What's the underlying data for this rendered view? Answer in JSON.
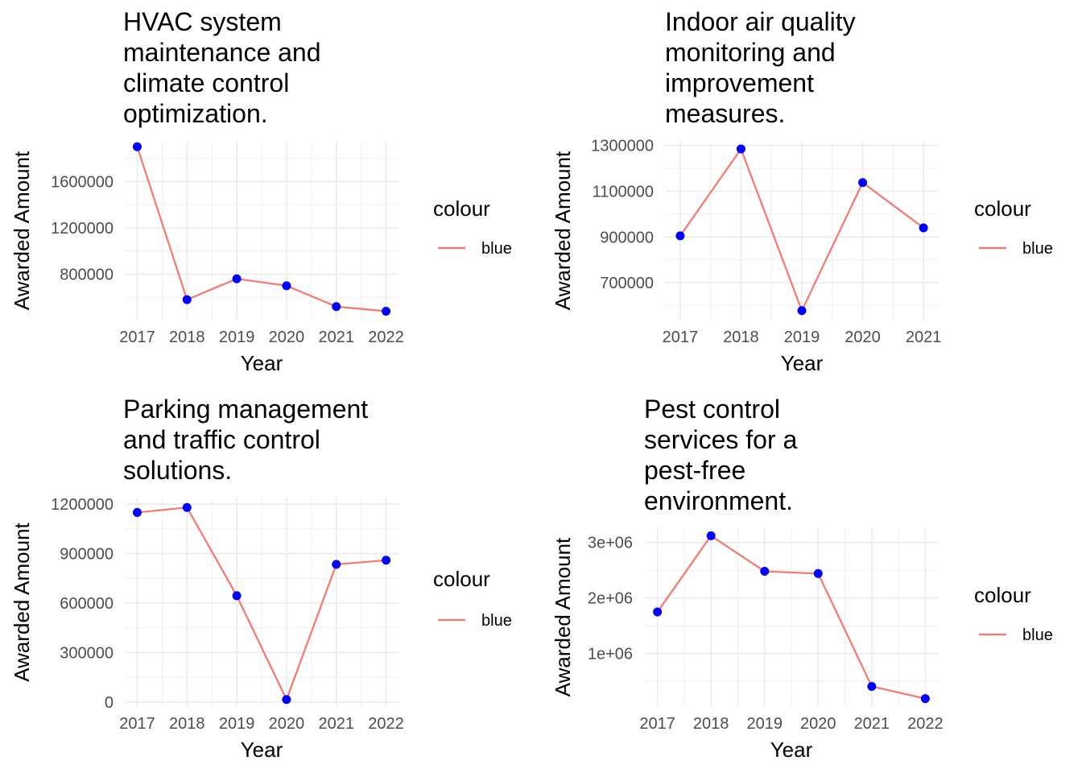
{
  "colors": {
    "line": "#F8766D",
    "point": "#0000FF"
  },
  "chart_data": [
    {
      "type": "line",
      "title": "HVAC system maintenance and climate control optimization.",
      "title_lines": [
        "HVAC system",
        "maintenance and",
        "climate control",
        "optimization."
      ],
      "xlabel": "Year",
      "ylabel": "Awarded Amount",
      "x": [
        2017,
        2018,
        2019,
        2020,
        2021,
        2022
      ],
      "y": [
        1900000,
        580000,
        760000,
        700000,
        520000,
        480000
      ],
      "ylim": [
        400000,
        1950000
      ],
      "yticks": [
        800000,
        1200000,
        1600000
      ],
      "ytick_labels": [
        "800000",
        "1200000",
        "1600000"
      ],
      "xtick_labels": [
        "2017",
        "2018",
        "2019",
        "2020",
        "2021",
        "2022"
      ],
      "legend": {
        "title": "colour",
        "entries": [
          "blue"
        ],
        "position": "right"
      },
      "grid": true
    },
    {
      "type": "line",
      "title": "Indoor air quality monitoring and improvement measures.",
      "title_lines": [
        "Indoor air quality",
        "monitoring and",
        "improvement",
        "measures."
      ],
      "xlabel": "Year",
      "ylabel": "Awarded Amount",
      "x": [
        2017,
        2018,
        2019,
        2020,
        2021
      ],
      "y": [
        905000,
        1285000,
        578000,
        1138000,
        940000
      ],
      "ylim": [
        535000,
        1320000
      ],
      "yticks": [
        700000,
        900000,
        1100000,
        1300000
      ],
      "ytick_labels": [
        "700000",
        "900000",
        "1100000",
        "1300000"
      ],
      "xtick_labels": [
        "2017",
        "2018",
        "2019",
        "2020",
        "2021"
      ],
      "legend": {
        "title": "colour",
        "entries": [
          "blue"
        ],
        "position": "right"
      },
      "grid": true
    },
    {
      "type": "line",
      "title": "Parking management and traffic control solutions.",
      "title_lines": [
        "Parking management",
        "and traffic control",
        "solutions."
      ],
      "xlabel": "Year",
      "ylabel": "Awarded Amount",
      "x": [
        2017,
        2018,
        2019,
        2020,
        2021,
        2022
      ],
      "y": [
        1150000,
        1180000,
        645000,
        15000,
        835000,
        860000
      ],
      "ylim": [
        -30000,
        1240000
      ],
      "yticks": [
        0,
        300000,
        600000,
        900000,
        1200000
      ],
      "ytick_labels": [
        "0",
        "300000",
        "600000",
        "900000",
        "1200000"
      ],
      "xtick_labels": [
        "2017",
        "2018",
        "2019",
        "2020",
        "2021",
        "2022"
      ],
      "legend": {
        "title": "colour",
        "entries": [
          "blue"
        ],
        "position": "right"
      },
      "grid": true
    },
    {
      "type": "line",
      "title": "Pest control services for a pest-free environment.",
      "title_lines": [
        "Pest control",
        "services for a",
        "pest-free",
        "environment."
      ],
      "xlabel": "Year",
      "ylabel": "Awarded Amount",
      "x": [
        2017,
        2018,
        2019,
        2020,
        2021,
        2022
      ],
      "y": [
        1750000,
        3120000,
        2480000,
        2440000,
        410000,
        190000
      ],
      "ylim": [
        40000,
        3270000
      ],
      "yticks": [
        1000000,
        2000000,
        3000000
      ],
      "ytick_labels": [
        "1e+06",
        "2e+06",
        "3e+06"
      ],
      "xtick_labels": [
        "2017",
        "2018",
        "2019",
        "2020",
        "2021",
        "2022"
      ],
      "legend": {
        "title": "colour",
        "entries": [
          "blue"
        ],
        "position": "right"
      },
      "grid": true
    }
  ]
}
